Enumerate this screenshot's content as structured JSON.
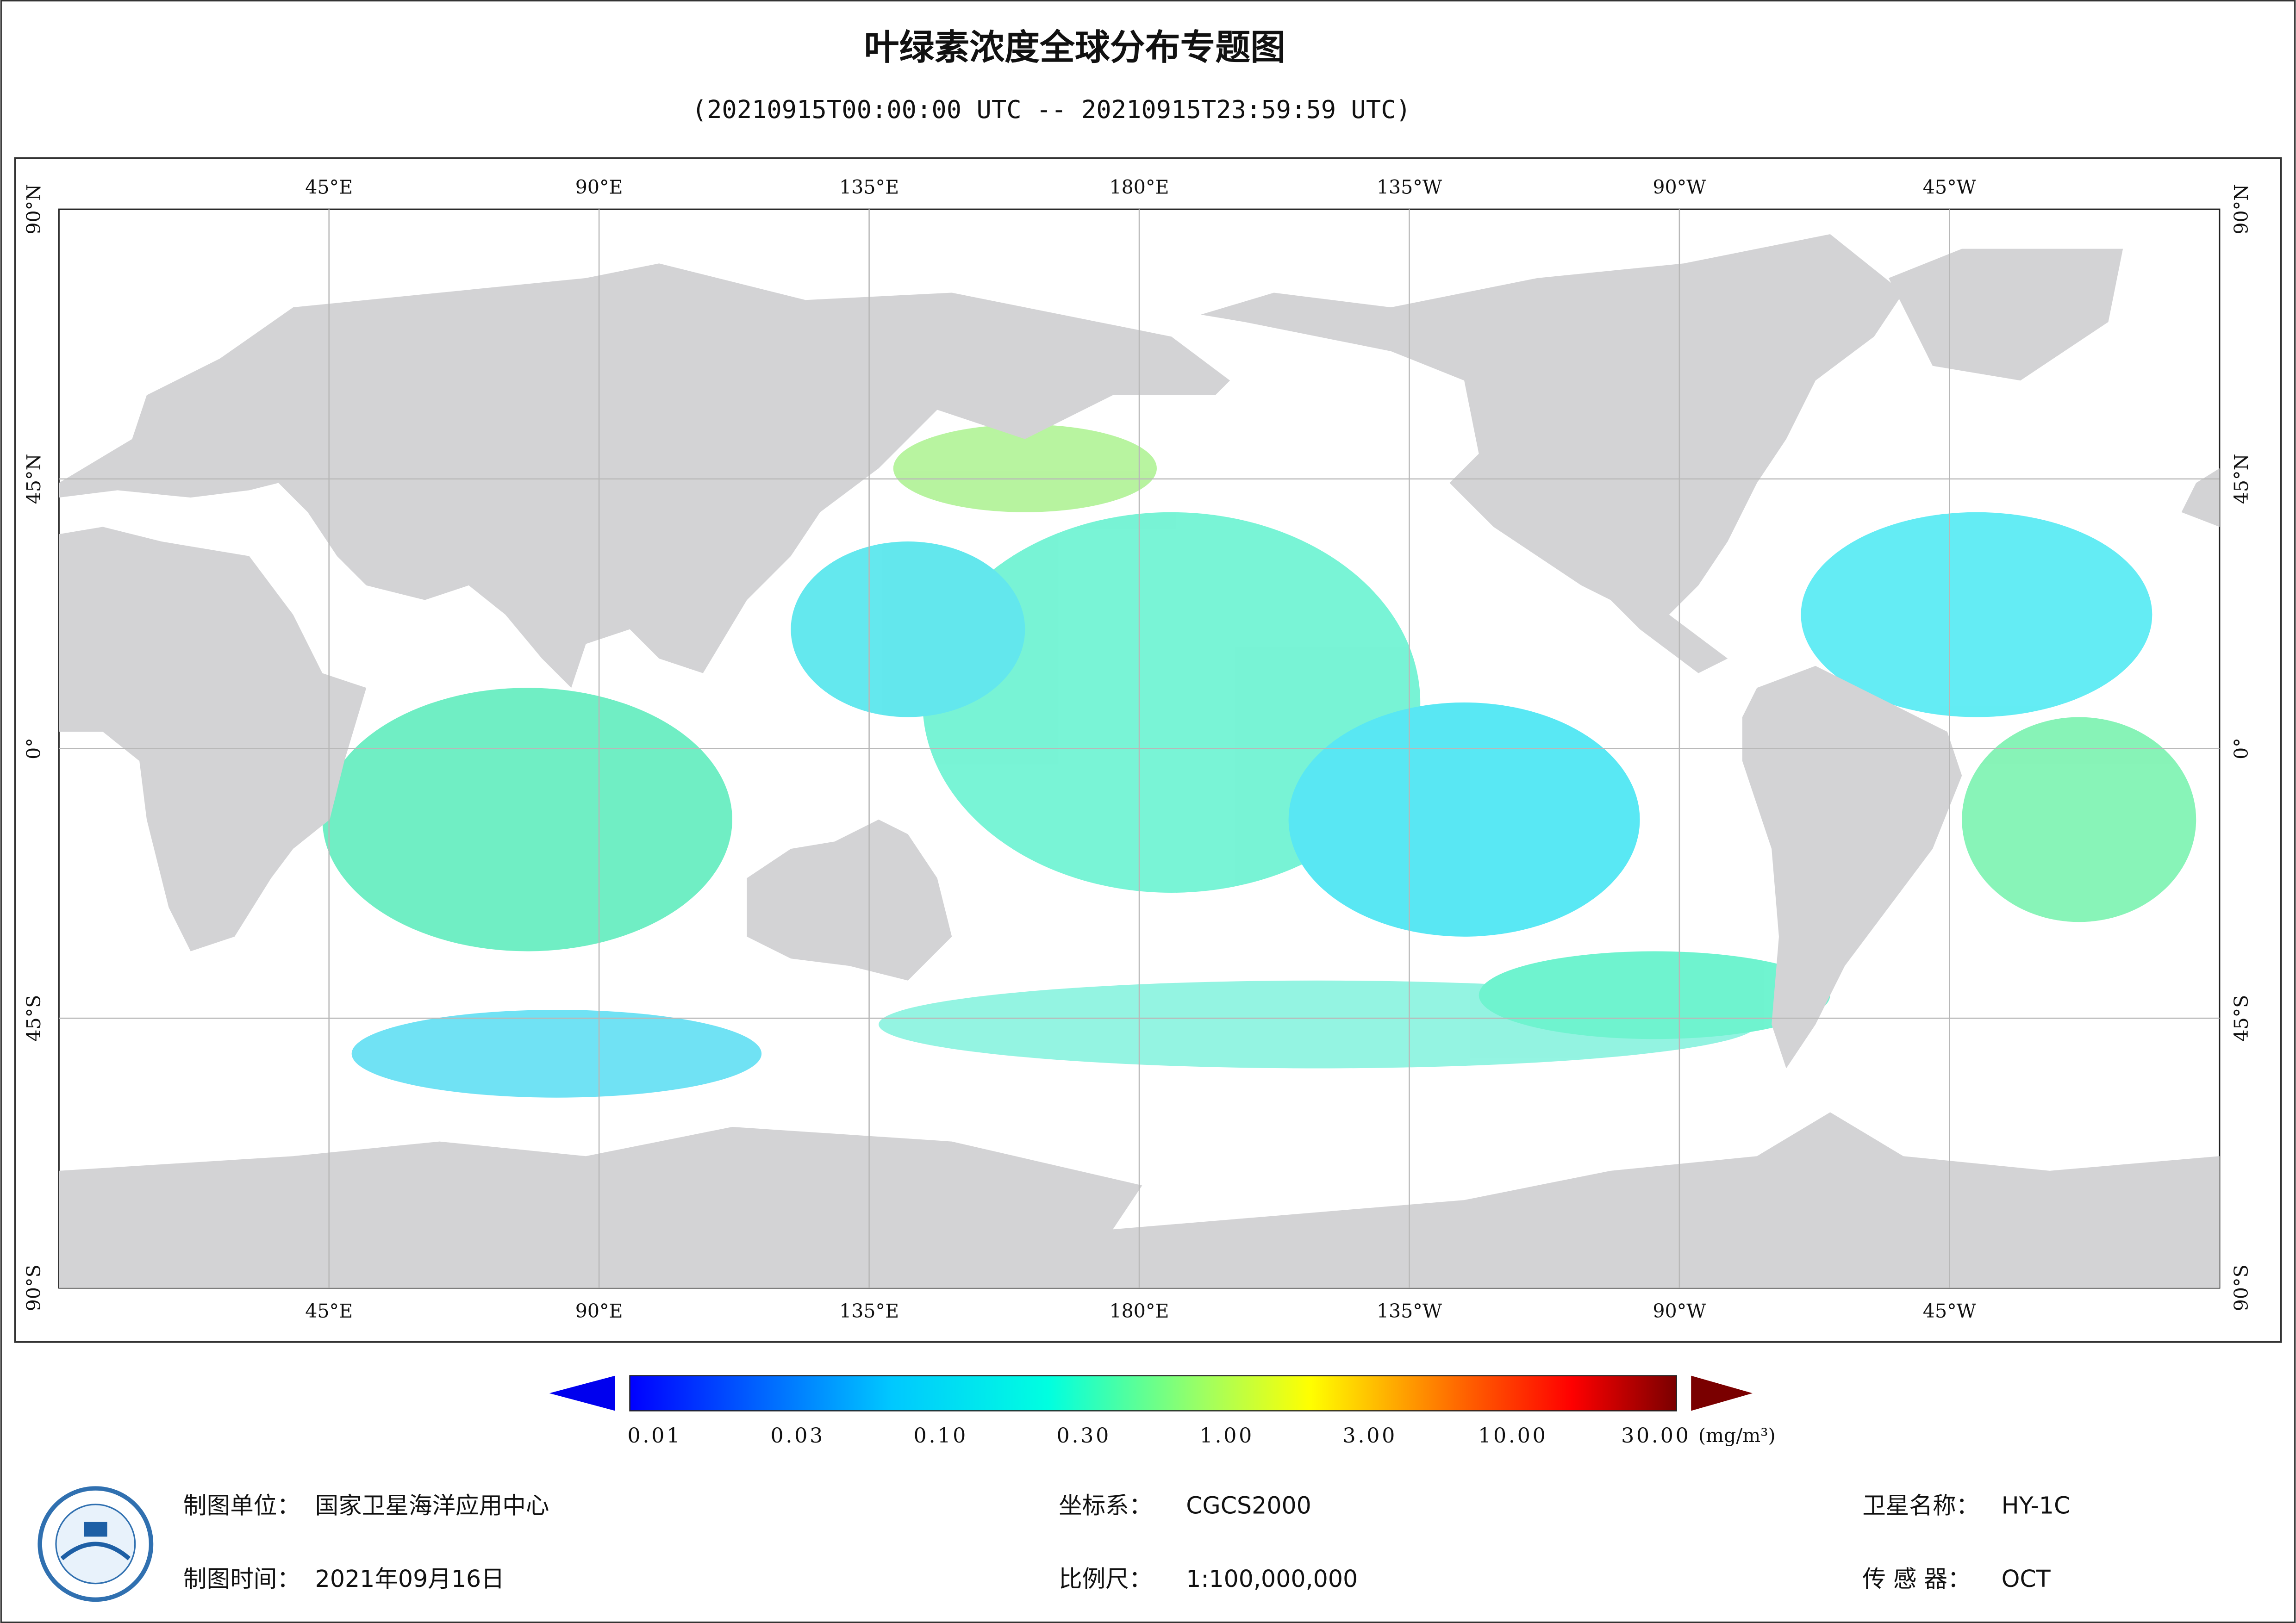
{
  "header": {
    "title": "叶绿素浓度全球分布专题图",
    "subtitle": "(20210915T00:00:00 UTC -- 20210915T23:59:59 UTC)"
  },
  "map": {
    "longitude_labels": [
      "45°E",
      "90°E",
      "135°E",
      "180°E",
      "135°W",
      "90°W",
      "45°W"
    ],
    "latitude_labels": [
      "90°N",
      "45°N",
      "0°",
      "45°S",
      "90°S"
    ]
  },
  "colorbar": {
    "labels": [
      "0.01",
      "0.03",
      "0.10",
      "0.30",
      "1.00",
      "3.00",
      "10.00",
      "30.00"
    ],
    "unit": "(mg/m³)"
  },
  "footer": {
    "unit": {
      "label": "制图单位：",
      "value": "国家卫星海洋应用中心"
    },
    "date": {
      "label": "制图时间：",
      "value": "2021年09月16日"
    },
    "crs": {
      "label": "坐标系：",
      "value": "CGCS2000"
    },
    "scale": {
      "label": "比例尺：",
      "value": "1:100,000,000"
    },
    "satellite": {
      "label": "卫星名称：",
      "value": "HY-1C"
    },
    "sensor": {
      "label": "传 感 器：",
      "value": "OCT"
    }
  }
}
